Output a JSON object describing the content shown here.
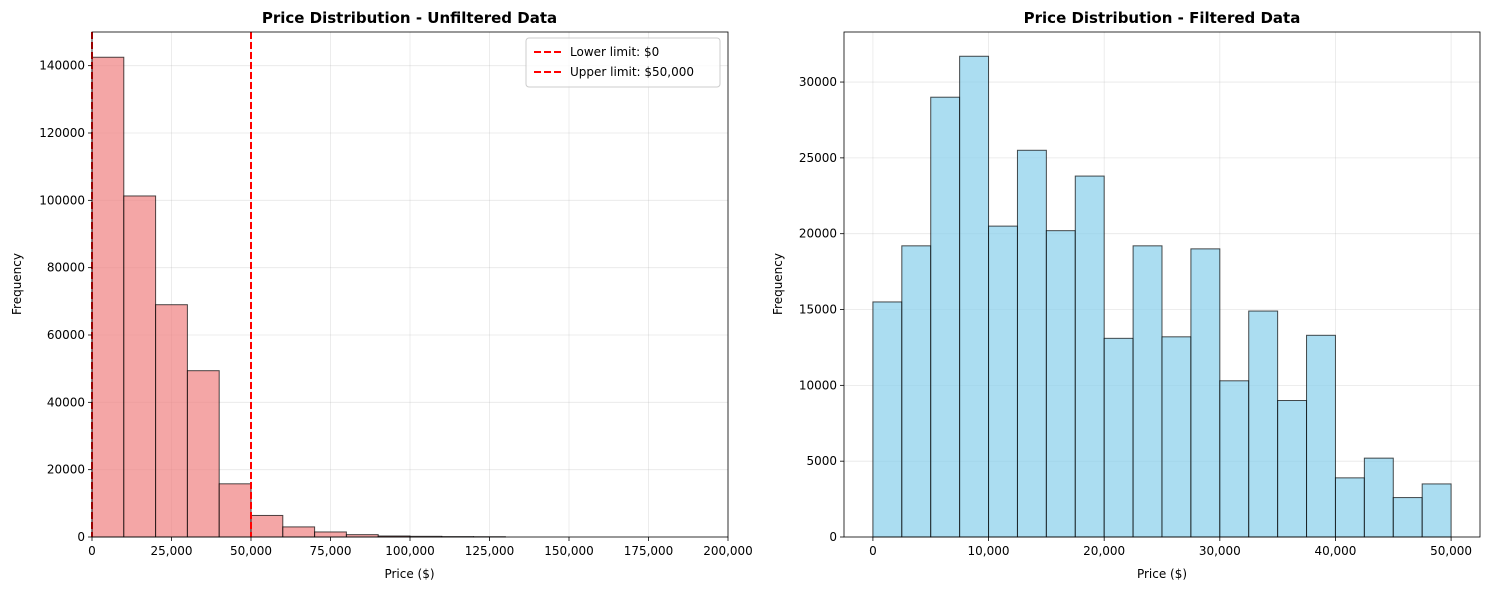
{
  "chart_data": [
    {
      "type": "bar",
      "title": "Price Distribution - Unfiltered Data",
      "xlabel": "Price ($)",
      "ylabel": "Frequency",
      "xlim": [
        0,
        200000
      ],
      "ylim": [
        0,
        150000
      ],
      "xticks": [
        0,
        25000,
        50000,
        75000,
        100000,
        125000,
        150000,
        175000,
        200000
      ],
      "xtick_labels": [
        "0",
        "25,000",
        "50,000",
        "75,000",
        "100,000",
        "125,000",
        "150,000",
        "175,000",
        "200,000"
      ],
      "yticks": [
        0,
        20000,
        40000,
        60000,
        80000,
        100000,
        120000,
        140000
      ],
      "ytick_labels": [
        "0",
        "20000",
        "40000",
        "60000",
        "80000",
        "100000",
        "120000",
        "140000"
      ],
      "bin_edges": [
        0,
        10000,
        20000,
        30000,
        40000,
        50000,
        60000,
        70000,
        80000,
        90000,
        100000,
        110000,
        120000,
        130000
      ],
      "values": [
        142500,
        101300,
        69000,
        49400,
        15800,
        6400,
        3000,
        1500,
        700,
        300,
        200,
        120,
        80
      ],
      "bar_color": "#f08080",
      "edge_color": "#000000",
      "vlines": [
        {
          "x": 0,
          "label": "Lower limit: $0",
          "color": "#ff0000"
        },
        {
          "x": 50000,
          "label": "Upper limit: $50,000",
          "color": "#ff0000"
        }
      ],
      "legend": "top-right",
      "grid": true
    },
    {
      "type": "bar",
      "title": "Price Distribution - Filtered Data",
      "xlabel": "Price ($)",
      "ylabel": "Frequency",
      "xlim": [
        -2500,
        52500
      ],
      "ylim": [
        0,
        33300
      ],
      "xticks": [
        0,
        10000,
        20000,
        30000,
        40000,
        50000
      ],
      "xtick_labels": [
        "0",
        "10,000",
        "20,000",
        "30,000",
        "40,000",
        "50,000"
      ],
      "yticks": [
        0,
        5000,
        10000,
        15000,
        20000,
        25000,
        30000
      ],
      "ytick_labels": [
        "0",
        "5000",
        "10000",
        "15000",
        "20000",
        "25000",
        "30000"
      ],
      "bin_edges": [
        0,
        2500,
        5000,
        7500,
        10000,
        12500,
        15000,
        17500,
        20000,
        22500,
        25000,
        27500,
        30000,
        32500,
        35000,
        37500,
        40000,
        42500,
        45000,
        47500,
        50000
      ],
      "values": [
        15500,
        19200,
        29000,
        31700,
        20500,
        25500,
        20200,
        23800,
        13100,
        19200,
        13200,
        19000,
        10300,
        14900,
        9000,
        13300,
        3900,
        5200,
        2600,
        3500
      ],
      "bar_color": "#87ceeb",
      "edge_color": "#000000",
      "grid": true
    }
  ]
}
